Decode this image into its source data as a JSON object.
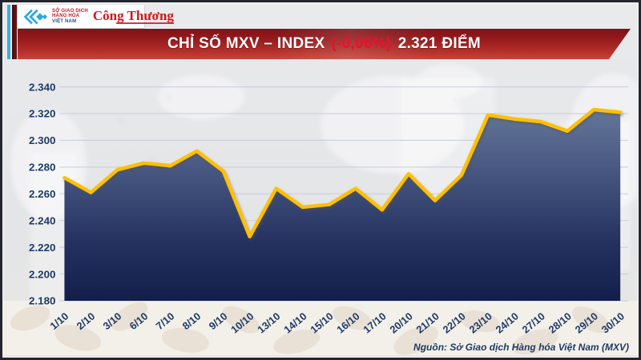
{
  "header": {
    "logo": {
      "org_lines": [
        "SỞ GIAO DỊCH",
        "HÀNG HÓA",
        "VIỆT NAM"
      ],
      "newspaper": "Công Thương"
    },
    "banner": {
      "title_prefix": "CHỈ SỐ MXV – INDEX",
      "change": "(-0,06%)",
      "value_text": "2.321 ĐIỂM"
    }
  },
  "footer": {
    "source": "Nguồn: Sở Giao dịch Hàng hóa Việt Nam (MXV)"
  },
  "colors": {
    "banner_top": "#7e1216",
    "banner_bottom": "#c8423a",
    "change_red": "#e8112d",
    "line_gold": "#ffc000",
    "fill_top": "#647699",
    "fill_bottom": "#131f4a",
    "axis_text": "#1e3a68",
    "grid_line": "#c6ccd8",
    "stripe_cyan": "#35b2e5",
    "stripe_maroon": "#571013",
    "logo_red": "#ce181e",
    "logo_blue": "#1d4f9e"
  },
  "chart_data": {
    "type": "area",
    "title": "Chỉ số MXV – INDEX (điểm)",
    "xlabel": "",
    "ylabel": "",
    "categories": [
      "1/10",
      "2/10",
      "3/10",
      "6/10",
      "7/10",
      "8/10",
      "9/10",
      "10/10",
      "13/10",
      "14/10",
      "15/10",
      "16/10",
      "17/10",
      "20/10",
      "21/10",
      "22/10",
      "23/10",
      "24/10",
      "27/10",
      "28/10",
      "29/10",
      "30/10"
    ],
    "values": [
      2272,
      2261,
      2278,
      2283,
      2281,
      2292,
      2277,
      2228,
      2264,
      2250,
      2252,
      2264,
      2248,
      2275,
      2255,
      2274,
      2319,
      2316,
      2314,
      2307,
      2323,
      2321
    ],
    "ylim": [
      2180,
      2340
    ],
    "yticks": [
      2340,
      2320,
      2300,
      2280,
      2260,
      2240,
      2220,
      2200,
      2180
    ],
    "ytick_labels": [
      "2.340",
      "2.320",
      "2.300",
      "2.280",
      "2.260",
      "2.240",
      "2.220",
      "2.200",
      "2.180"
    ],
    "grid": true,
    "legend": "none",
    "last_value_label": "2.321"
  }
}
